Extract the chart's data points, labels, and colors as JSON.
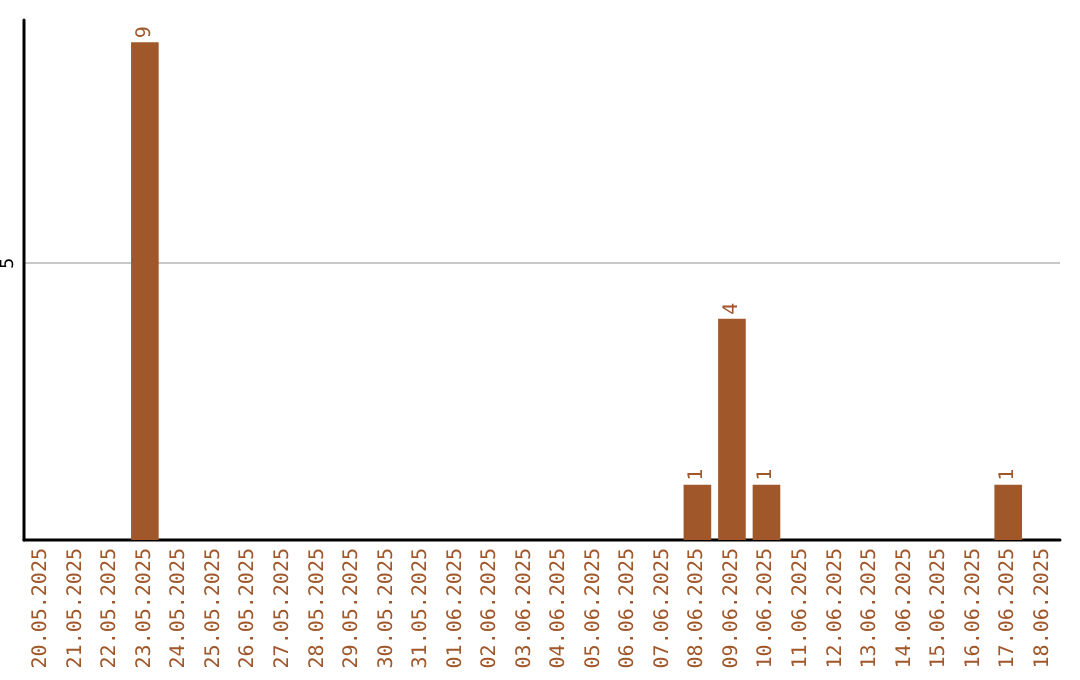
{
  "chart_data": {
    "type": "bar",
    "categories": [
      "20.05.2025",
      "21.05.2025",
      "22.05.2025",
      "23.05.2025",
      "24.05.2025",
      "25.05.2025",
      "26.05.2025",
      "27.05.2025",
      "28.05.2025",
      "29.05.2025",
      "30.05.2025",
      "31.05.2025",
      "01.06.2025",
      "02.06.2025",
      "03.06.2025",
      "04.06.2025",
      "05.06.2025",
      "06.06.2025",
      "07.06.2025",
      "08.06.2025",
      "09.06.2025",
      "10.06.2025",
      "11.06.2025",
      "12.06.2025",
      "13.06.2025",
      "14.06.2025",
      "15.06.2025",
      "16.06.2025",
      "17.06.2025",
      "18.06.2025"
    ],
    "values": [
      0,
      0,
      0,
      9,
      0,
      0,
      0,
      0,
      0,
      0,
      0,
      0,
      0,
      0,
      0,
      0,
      0,
      0,
      0,
      1,
      4,
      1,
      0,
      0,
      0,
      0,
      0,
      0,
      1,
      0
    ],
    "value_labels": [
      null,
      null,
      null,
      "9",
      null,
      null,
      null,
      null,
      null,
      null,
      null,
      null,
      null,
      null,
      null,
      null,
      null,
      null,
      null,
      "1",
      "4",
      "1",
      null,
      null,
      null,
      null,
      null,
      null,
      "1",
      null
    ],
    "color": "#a0572a",
    "ylim": [
      0,
      9.4
    ],
    "yticks": [
      5
    ],
    "grid": "y"
  }
}
